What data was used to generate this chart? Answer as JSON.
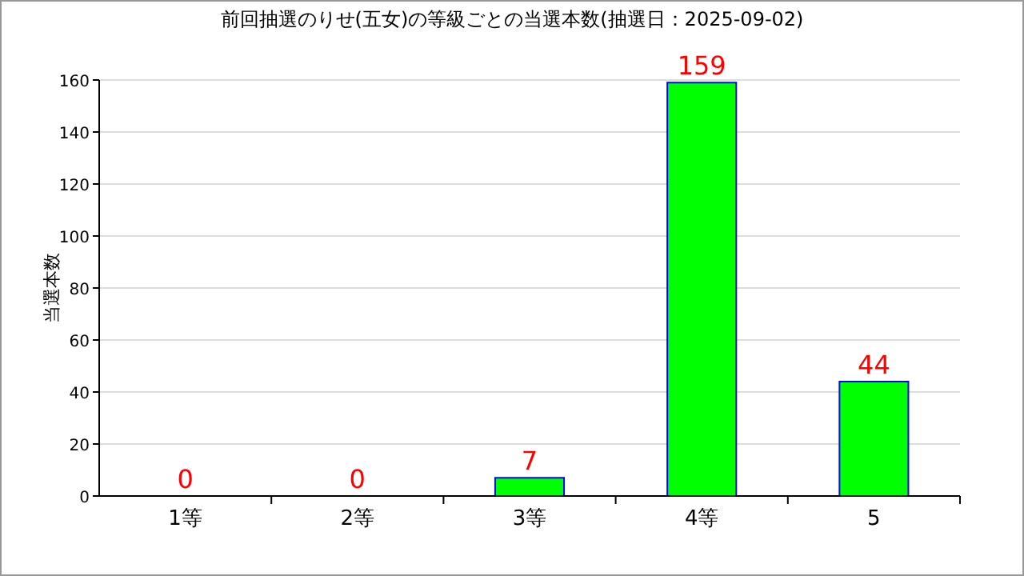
{
  "chart_data": {
    "type": "bar",
    "title": "前回抽選のりせ(五女)の等級ごとの当選本数(抽選日：2025-09-02)",
    "ylabel": "当選本数",
    "categories": [
      "1等",
      "2等",
      "3等",
      "4等",
      "5"
    ],
    "values": [
      0,
      0,
      7,
      159,
      44
    ],
    "color": "#00ff00",
    "data_labels": true,
    "ylim": [
      0,
      160
    ],
    "yticks": [
      0,
      20,
      40,
      60,
      80,
      100,
      120,
      140,
      160
    ],
    "grid": "y"
  }
}
